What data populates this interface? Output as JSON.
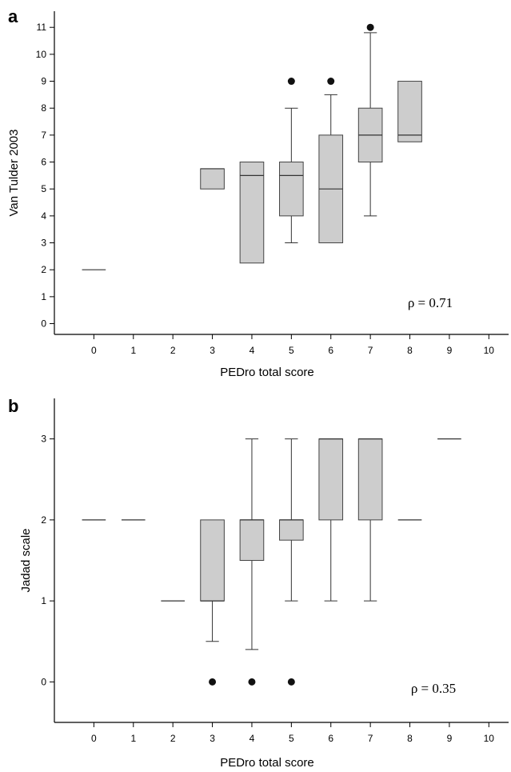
{
  "chart_data": [
    {
      "panel_label": "a",
      "type": "box",
      "xlabel": "PEDro total score",
      "ylabel": "Van Tulder 2003",
      "xticks": [
        0,
        1,
        2,
        3,
        4,
        5,
        6,
        7,
        8,
        9,
        10
      ],
      "yticks": [
        0,
        1,
        2,
        3,
        4,
        5,
        6,
        7,
        8,
        9,
        10,
        11
      ],
      "xlim": [
        -1,
        10.5
      ],
      "ylim": [
        -0.4,
        11.6
      ],
      "annotation": "ρ = 0.71",
      "boxes": [
        {
          "x": 0,
          "min": 2,
          "q1": 2,
          "median": 2,
          "q3": 2,
          "max": 2,
          "outliers": []
        },
        {
          "x": 3,
          "min": 5,
          "q1": 5,
          "median": 5.75,
          "q3": 5.75,
          "max": 5.75,
          "outliers": []
        },
        {
          "x": 4,
          "min": 2.25,
          "q1": 2.25,
          "median": 5.5,
          "q3": 6,
          "max": 6,
          "outliers": []
        },
        {
          "x": 5,
          "min": 3,
          "q1": 4,
          "median": 5.5,
          "q3": 6,
          "max": 8,
          "outliers": [
            9
          ]
        },
        {
          "x": 6,
          "min": 3,
          "q1": 3,
          "median": 5,
          "q3": 7,
          "max": 8.5,
          "outliers": [
            9
          ]
        },
        {
          "x": 7,
          "min": 4,
          "q1": 6,
          "median": 7,
          "q3": 8,
          "max": 10.8,
          "outliers": [
            11
          ]
        },
        {
          "x": 8,
          "min": 6.75,
          "q1": 6.75,
          "median": 7,
          "q3": 9,
          "max": 9,
          "outliers": []
        }
      ]
    },
    {
      "panel_label": "b",
      "type": "box",
      "xlabel": "PEDro total score",
      "ylabel": "Jadad scale",
      "xticks": [
        0,
        1,
        2,
        3,
        4,
        5,
        6,
        7,
        8,
        9,
        10
      ],
      "yticks": [
        0,
        1,
        2,
        3
      ],
      "xlim": [
        -1,
        10.5
      ],
      "ylim": [
        -0.5,
        3.5
      ],
      "annotation": "ρ = 0.35",
      "boxes": [
        {
          "x": 0,
          "min": 2,
          "q1": 2,
          "median": 2,
          "q3": 2,
          "max": 2,
          "outliers": []
        },
        {
          "x": 1,
          "min": 2,
          "q1": 2,
          "median": 2,
          "q3": 2,
          "max": 2,
          "outliers": []
        },
        {
          "x": 2,
          "min": 1,
          "q1": 1,
          "median": 1,
          "q3": 1,
          "max": 1,
          "outliers": []
        },
        {
          "x": 3,
          "min": 0.5,
          "q1": 1,
          "median": 1,
          "q3": 2,
          "max": 2,
          "outliers": [
            0
          ]
        },
        {
          "x": 4,
          "min": 0.4,
          "q1": 1.5,
          "median": 2,
          "q3": 2,
          "max": 3,
          "outliers": [
            0
          ]
        },
        {
          "x": 5,
          "min": 1,
          "q1": 1.75,
          "median": 2,
          "q3": 2,
          "max": 3,
          "outliers": [
            0
          ]
        },
        {
          "x": 6,
          "min": 1,
          "q1": 2,
          "median": 3,
          "q3": 3,
          "max": 3,
          "outliers": []
        },
        {
          "x": 7,
          "min": 1,
          "q1": 2,
          "median": 3,
          "q3": 3,
          "max": 3,
          "outliers": []
        },
        {
          "x": 8,
          "min": 2,
          "q1": 2,
          "median": 2,
          "q3": 2,
          "max": 2,
          "outliers": []
        },
        {
          "x": 9,
          "min": 3,
          "q1": 3,
          "median": 3,
          "q3": 3,
          "max": 3,
          "outliers": []
        }
      ]
    }
  ]
}
